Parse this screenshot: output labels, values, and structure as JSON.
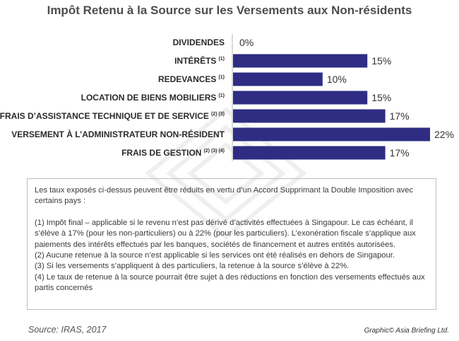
{
  "title": "Impôt Retenu à la Source sur les Versements aux Non-résidents",
  "chart_data": {
    "type": "bar",
    "orientation": "horizontal",
    "title": "Impôt Retenu à la Source sur les Versements aux Non-résidents",
    "categories": [
      {
        "label": "DIVIDENDES",
        "notes": ""
      },
      {
        "label": "INTÉRÊTS",
        "notes": "(1)"
      },
      {
        "label": "REDEVANCES",
        "notes": "(1)"
      },
      {
        "label": "LOCATION DE BIENS MOBILIERS",
        "notes": "(1)"
      },
      {
        "label": "FRAIS D’ASSISTANCE TECHNIQUE ET DE SERVICE",
        "notes": "(2) (3)"
      },
      {
        "label": "VERSEMENT À L’ADMINISTRATEUR NON-RÉSIDENT",
        "notes": ""
      },
      {
        "label": "FRAIS DE GESTION",
        "notes": "(2) (3) (4)"
      }
    ],
    "values": [
      0,
      15,
      10,
      15,
      17,
      22,
      17
    ],
    "value_labels": [
      "0%",
      "15%",
      "10%",
      "15%",
      "17%",
      "22%",
      "17%"
    ],
    "xlim": [
      0,
      22
    ],
    "bar_color": "#2e2d83",
    "xlabel": "",
    "ylabel": ""
  },
  "notes": {
    "intro": "Les taux exposés ci-dessus peuvent être réduits en vertu d’un Accord Supprimant la Double Imposition avec certains pays :",
    "items": [
      "(1) Impôt final – applicable si le revenu n’est pas dérivé d’activités effectuées à Singapour. Le cas échéant, il s’élève à 17% (pour les non-particuliers) ou à 22% (pour les particuliers). L’exonération fiscale s’applique aux paiements des intérêts effectués par les banques, sociétés de financement et autres entités autorisées.",
      "(2) Aucune retenue à la source n’est applicable si les services ont été réalisés en dehors de Singapour.",
      "(3) Si les versements s’appliquent à des particuliers, la retenue à la source s’élève à 22%.",
      "(4) Le taux de retenue à la source pourrait être sujet à des réductions en fonction des versements effectués aux partis concernés"
    ]
  },
  "footer": {
    "source": "Source: IRAS, 2017",
    "credit": "Graphic© Asia Briefing Ltd."
  }
}
